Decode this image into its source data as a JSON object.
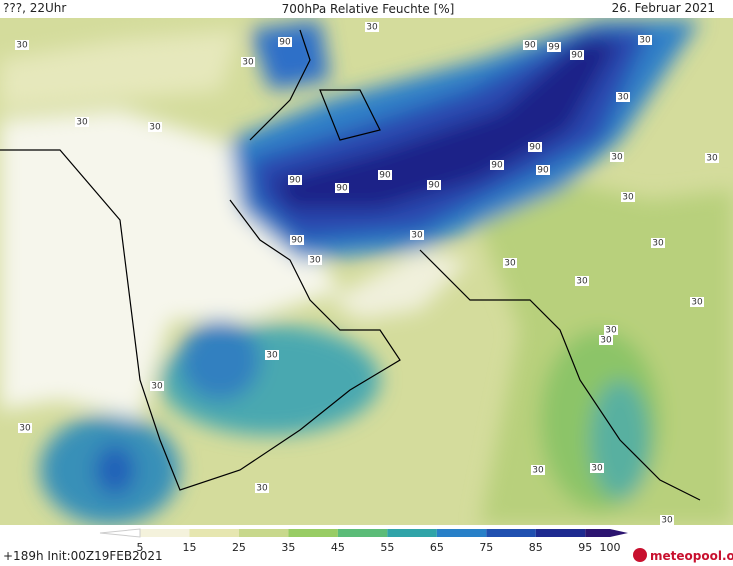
{
  "header": {
    "left": "???, 22Uhr",
    "title": "700hPa Relative Feuchte [%]",
    "date": "26. Februar 2021"
  },
  "contour_labels": [
    "30",
    "30",
    "30",
    "30",
    "30",
    "30",
    "30",
    "30",
    "30",
    "30",
    "30",
    "30",
    "30",
    "30",
    "30",
    "30",
    "30",
    "30",
    "30",
    "30",
    "30",
    "30",
    "30",
    "30",
    "30",
    "90",
    "90",
    "90",
    "90",
    "90",
    "90",
    "90",
    "90",
    "90",
    "90",
    "90",
    "99"
  ],
  "colorbar": {
    "ticks": [
      5,
      15,
      25,
      35,
      45,
      55,
      65,
      75,
      85,
      95,
      100
    ]
  },
  "footer": {
    "run": "+189h Init:00Z19FEB2021",
    "logo": "meteopool.org"
  }
}
